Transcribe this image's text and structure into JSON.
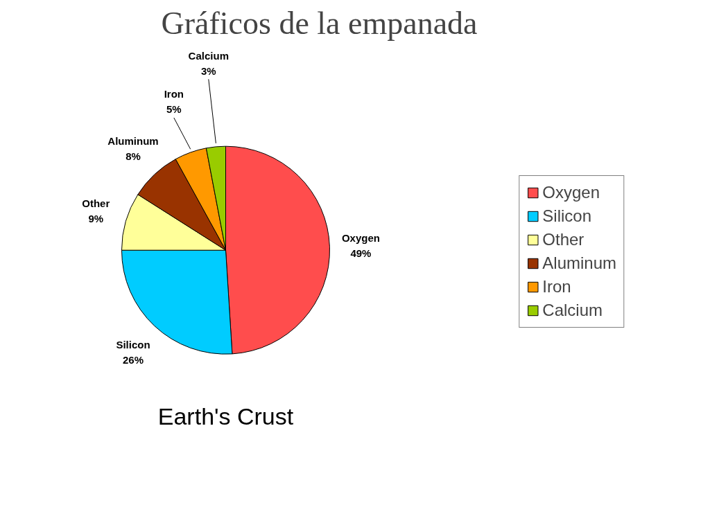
{
  "chart_data": {
    "type": "pie",
    "title": "Gráficos de la empanada",
    "categories": [
      "Oxygen",
      "Silicon",
      "Other",
      "Aluminum",
      "Iron",
      "Calcium"
    ],
    "values": [
      49,
      26,
      9,
      8,
      5,
      3
    ],
    "value_labels": [
      "49%",
      "26%",
      "9%",
      "8%",
      "5%",
      "3%"
    ],
    "colors": [
      "#ff4d4d",
      "#00ccff",
      "#ffff99",
      "#993300",
      "#ff9900",
      "#99cc00"
    ],
    "legend": "right",
    "annotations": [
      "Earth's Crust"
    ]
  }
}
